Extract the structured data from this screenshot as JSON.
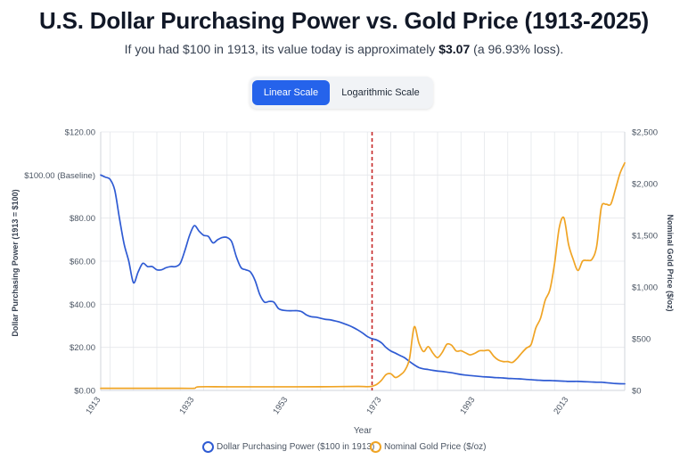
{
  "header": {
    "title": "U.S. Dollar Purchasing Power vs. Gold Price (1913-2025)",
    "subtitle_prefix": "If you had $100 in 1913, its value today is approximately ",
    "subtitle_value": "$3.07",
    "subtitle_suffix": " (a 96.93% loss)."
  },
  "scale_toggle": {
    "linear_label": "Linear Scale",
    "log_label": "Logarithmic Scale",
    "selected": "linear"
  },
  "colors": {
    "dollar": "#2f5bd3",
    "gold": "#f0a424",
    "marker": "#c62828",
    "grid": "#e5e7eb"
  },
  "chart_data": {
    "type": "line",
    "title": "U.S. Dollar Purchasing Power vs. Gold Price (1913-2025)",
    "xlabel": "Year",
    "ylabel_left": "Dollar Purchasing Power (1913 = $100)",
    "ylabel_right": "Nominal Gold Price ($/oz)",
    "xlim": [
      1913,
      2025
    ],
    "x_ticks": [
      "1913",
      "1933",
      "1953",
      "1973",
      "1993",
      "2013"
    ],
    "x_tick_values": [
      1913,
      1933,
      1953,
      1973,
      1993,
      2013
    ],
    "y_left_lim": [
      0,
      120
    ],
    "y_left_ticks": [
      "$0.00",
      "$20.00",
      "$40.00",
      "$60.00",
      "$80.00",
      "$100.00 (Baseline)",
      "$120.00"
    ],
    "y_left_tick_values": [
      0,
      20,
      40,
      60,
      80,
      100,
      120
    ],
    "y_right_lim": [
      0,
      2500
    ],
    "y_right_ticks": [
      "$0",
      "$500",
      "$1,000",
      "$1,500",
      "$2,000",
      "$2,500"
    ],
    "y_right_tick_values": [
      0,
      500,
      1000,
      1500,
      2000,
      2500
    ],
    "marker_year": 1971,
    "grid": true,
    "legend_position": "bottom",
    "series": [
      {
        "name": "Dollar Purchasing Power ($100 in 1913)",
        "axis": "left",
        "x": [
          1913,
          1914,
          1915,
          1916,
          1917,
          1918,
          1919,
          1920,
          1921,
          1922,
          1923,
          1924,
          1925,
          1926,
          1927,
          1928,
          1929,
          1930,
          1931,
          1932,
          1933,
          1934,
          1935,
          1936,
          1937,
          1938,
          1939,
          1940,
          1941,
          1942,
          1943,
          1944,
          1945,
          1946,
          1947,
          1948,
          1949,
          1950,
          1951,
          1952,
          1953,
          1954,
          1955,
          1956,
          1957,
          1958,
          1959,
          1960,
          1961,
          1962,
          1963,
          1964,
          1965,
          1966,
          1967,
          1968,
          1969,
          1970,
          1971,
          1972,
          1973,
          1974,
          1975,
          1976,
          1977,
          1978,
          1979,
          1980,
          1981,
          1982,
          1983,
          1984,
          1985,
          1986,
          1987,
          1988,
          1989,
          1990,
          1991,
          1992,
          1993,
          1994,
          1995,
          1996,
          1997,
          1998,
          1999,
          2000,
          2001,
          2002,
          2003,
          2004,
          2005,
          2006,
          2007,
          2008,
          2009,
          2010,
          2011,
          2012,
          2013,
          2014,
          2015,
          2016,
          2017,
          2018,
          2019,
          2020,
          2021,
          2022,
          2023,
          2024,
          2025
        ],
        "values": [
          100,
          99,
          98,
          93,
          80,
          68,
          60,
          50,
          55,
          59,
          57.5,
          57.5,
          56,
          56,
          57,
          57.5,
          57.5,
          59,
          65,
          72,
          76.5,
          74,
          72,
          71.5,
          68.5,
          70,
          71,
          71,
          69,
          62,
          57,
          56,
          55,
          51,
          44.5,
          41,
          41.3,
          41,
          38,
          37.2,
          37,
          37,
          37,
          36.5,
          35,
          34.2,
          34,
          33.5,
          33,
          32.8,
          32.3,
          31.8,
          31,
          30.2,
          29.2,
          28,
          26.6,
          25,
          24,
          23.4,
          22.1,
          19.9,
          18.3,
          17.3,
          16.2,
          15.1,
          13.4,
          11.9,
          10.6,
          10,
          9.7,
          9.3,
          9.0,
          8.8,
          8.5,
          8.2,
          7.8,
          7.4,
          7.1,
          6.9,
          6.7,
          6.5,
          6.3,
          6.2,
          6.0,
          5.9,
          5.8,
          5.6,
          5.5,
          5.4,
          5.3,
          5.1,
          5.0,
          4.8,
          4.7,
          4.6,
          4.6,
          4.5,
          4.4,
          4.3,
          4.2,
          4.2,
          4.2,
          4.1,
          4.0,
          3.9,
          3.8,
          3.8,
          3.6,
          3.4,
          3.2,
          3.1,
          3.07
        ]
      },
      {
        "name": "Nominal Gold Price ($/oz)",
        "axis": "right",
        "x": [
          1913,
          1920,
          1930,
          1933,
          1934,
          1940,
          1950,
          1960,
          1968,
          1970,
          1971,
          1972,
          1973,
          1974,
          1975,
          1976,
          1977,
          1978,
          1979,
          1980,
          1981,
          1982,
          1983,
          1984,
          1985,
          1986,
          1987,
          1988,
          1989,
          1990,
          1991,
          1992,
          1993,
          1994,
          1995,
          1996,
          1997,
          1998,
          1999,
          2000,
          2001,
          2002,
          2003,
          2004,
          2005,
          2006,
          2007,
          2008,
          2009,
          2010,
          2011,
          2012,
          2013,
          2014,
          2015,
          2016,
          2017,
          2018,
          2019,
          2020,
          2021,
          2022,
          2023,
          2024,
          2025
        ],
        "values": [
          20.67,
          20.67,
          20.67,
          20.67,
          35,
          35,
          35,
          35.3,
          39,
          36,
          40.8,
          58.2,
          97.3,
          154,
          161,
          125,
          148,
          193,
          307,
          615,
          460,
          376,
          424,
          361,
          317,
          368,
          447,
          437,
          381,
          384,
          363,
          344,
          360,
          384,
          384,
          387,
          331,
          294,
          279,
          279,
          271,
          310,
          363,
          410,
          445,
          604,
          697,
          872,
          972,
          1225,
          1572,
          1669,
          1411,
          1266,
          1160,
          1251,
          1257,
          1268,
          1393,
          1770,
          1800,
          1800,
          1943,
          2100,
          2200
        ]
      }
    ]
  }
}
